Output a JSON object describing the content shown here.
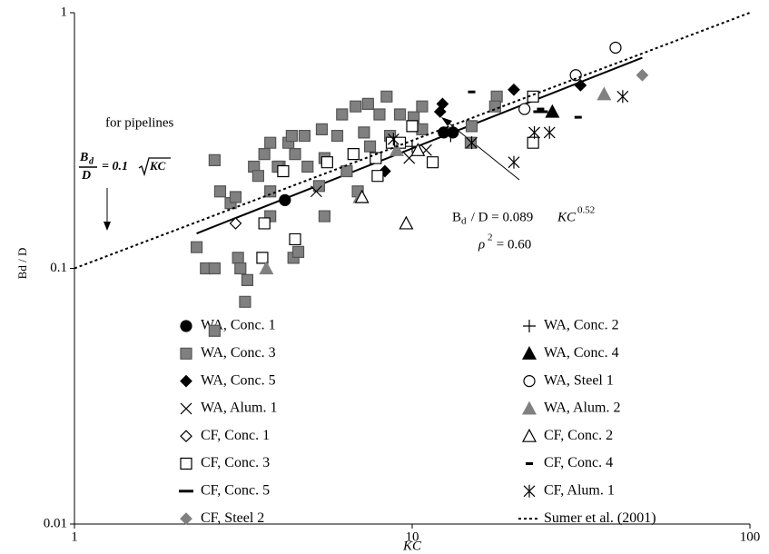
{
  "chart_data": {
    "type": "scatter",
    "x_label": "KC",
    "y_label": "Bd / D",
    "log_x": true,
    "log_y": true,
    "xlim": [
      1,
      100
    ],
    "ylim": [
      0.01,
      1
    ],
    "xticks": [
      1,
      10,
      100
    ],
    "yticks": [
      0.01,
      0.1,
      1
    ],
    "legend": "bottom",
    "series": [
      {
        "name": "WA, Conc. 1",
        "marker": "circle",
        "color": "#000000",
        "filled": true,
        "x": [
          4.2,
          12.4,
          13.2
        ],
        "values": [
          0.185,
          0.34,
          0.34
        ]
      },
      {
        "name": "WA, Conc. 3",
        "marker": "square",
        "color": "#808080",
        "filled": true,
        "x": [
          2.3,
          2.45,
          2.6,
          2.6,
          2.6,
          2.7,
          2.9,
          3.0,
          3.05,
          3.1,
          3.25,
          3.2,
          3.4,
          3.5,
          3.65,
          3.8,
          4.05,
          3.8,
          3.8,
          4.0,
          4.3,
          4.4,
          4.5,
          4.45,
          4.6,
          4.8,
          4.9,
          5.3,
          5.4,
          5.5,
          5.5,
          6.0,
          6.2,
          6.4,
          6.8,
          7.2,
          7.4,
          7.5,
          8.0,
          8.4,
          8.6,
          9.2,
          10.1,
          10.7,
          10.7,
          15,
          14.9,
          17.8,
          17.6,
          6.9
        ],
        "values": [
          0.121,
          0.1,
          0.1,
          0.057,
          0.265,
          0.2,
          0.18,
          0.19,
          0.11,
          0.1,
          0.09,
          0.074,
          0.25,
          0.23,
          0.28,
          0.31,
          0.25,
          0.2,
          0.16,
          0.25,
          0.31,
          0.33,
          0.28,
          0.11,
          0.116,
          0.33,
          0.25,
          0.21,
          0.35,
          0.27,
          0.16,
          0.33,
          0.4,
          0.24,
          0.43,
          0.34,
          0.44,
          0.3,
          0.4,
          0.47,
          0.33,
          0.4,
          0.39,
          0.43,
          0.35,
          0.36,
          0.31,
          0.47,
          0.43,
          0.2
        ]
      },
      {
        "name": "WA, Conc. 5",
        "marker": "diamond",
        "color": "#000000",
        "filled": true,
        "x": [
          12.3,
          12.1,
          8.3,
          20,
          31.5
        ],
        "values": [
          0.44,
          0.41,
          0.24,
          0.5,
          0.52
        ]
      },
      {
        "name": "WA, Alum. 1",
        "marker": "x",
        "color": "#000000",
        "filled": false,
        "x": [
          9.8,
          5.2,
          11
        ],
        "values": [
          0.27,
          0.2,
          0.29
        ]
      },
      {
        "name": "CF, Conc. 1",
        "marker": "diamond",
        "color": "#000000",
        "filled": false,
        "x": [
          3.0
        ],
        "values": [
          0.15
        ]
      },
      {
        "name": "CF, Conc. 3",
        "marker": "square",
        "color": "#000000",
        "filled": false,
        "x": [
          3.6,
          3.65,
          4.15,
          4.5,
          5.6,
          6.7,
          7.9,
          8.7,
          10,
          11.5,
          22.8,
          22.8,
          7.8,
          9.2
        ],
        "values": [
          0.11,
          0.15,
          0.24,
          0.13,
          0.26,
          0.28,
          0.23,
          0.31,
          0.36,
          0.26,
          0.47,
          0.31,
          0.27,
          0.31
        ]
      },
      {
        "name": "CF, Conc. 5",
        "marker": "longdash",
        "color": "#000000",
        "filled": true,
        "x": [
          24
        ],
        "values": [
          0.41
        ]
      },
      {
        "name": "CF, Steel 2",
        "marker": "diamond",
        "color": "#808080",
        "filled": true,
        "x": [
          48
        ],
        "values": [
          0.57
        ]
      },
      {
        "name": "WA, Conc. 2",
        "marker": "plus",
        "color": "#000000",
        "filled": false,
        "x": [
          10,
          13
        ],
        "values": [
          0.3,
          0.33
        ]
      },
      {
        "name": "WA, Conc. 4",
        "marker": "triangle",
        "color": "#000000",
        "filled": true,
        "x": [
          26
        ],
        "values": [
          0.41
        ]
      },
      {
        "name": "WA, Steel 1",
        "marker": "circle",
        "color": "#000000",
        "filled": false,
        "x": [
          40,
          30.5,
          21.5
        ],
        "values": [
          0.73,
          0.57,
          0.42
        ]
      },
      {
        "name": "WA, Alum. 2",
        "marker": "triangle",
        "color": "#808080",
        "filled": true,
        "x": [
          37,
          9,
          7,
          3.7
        ],
        "values": [
          0.48,
          0.29,
          0.19,
          0.1
        ]
      },
      {
        "name": "CF, Conc. 2",
        "marker": "triangle",
        "color": "#000000",
        "filled": false,
        "x": [
          9.6,
          10.4,
          7.1
        ],
        "values": [
          0.15,
          0.29,
          0.19
        ]
      },
      {
        "name": "CF, Conc. 4",
        "marker": "dash",
        "color": "#000000",
        "filled": true,
        "x": [
          15,
          31,
          24
        ],
        "values": [
          0.49,
          0.39,
          0.42
        ]
      },
      {
        "name": "CF, Alum. 1",
        "marker": "asterisk",
        "color": "#000000",
        "filled": false,
        "x": [
          23,
          25.5,
          42,
          20,
          15,
          8.8
        ],
        "values": [
          0.34,
          0.34,
          0.47,
          0.26,
          0.31,
          0.32
        ]
      },
      {
        "name": "Sumer et al. (2001)",
        "marker": "dotted-line",
        "color": "#000000",
        "filled": false,
        "x": [
          1,
          100
        ],
        "values": [
          0.1,
          1
        ]
      }
    ],
    "fit_line": {
      "color": "#000000",
      "x": [
        2.3,
        48
      ],
      "values": [
        0.137,
        0.667
      ]
    },
    "pipeline_note": "for pipelines",
    "pipeline_formula": {
      "numerator": "B",
      "numerator_sub": "d",
      "denominator": "D",
      "rhs": "= 0.1",
      "radicand": "KC"
    },
    "fit_label": {
      "lhs": "B",
      "lhs_sub": "d",
      "rhs": " / D = 0.089 ",
      "variable": "KC",
      "exponent": "0.52"
    },
    "r2_label": {
      "symbol": "ρ",
      "exponent": "2",
      "rhs": " = 0.60"
    }
  }
}
